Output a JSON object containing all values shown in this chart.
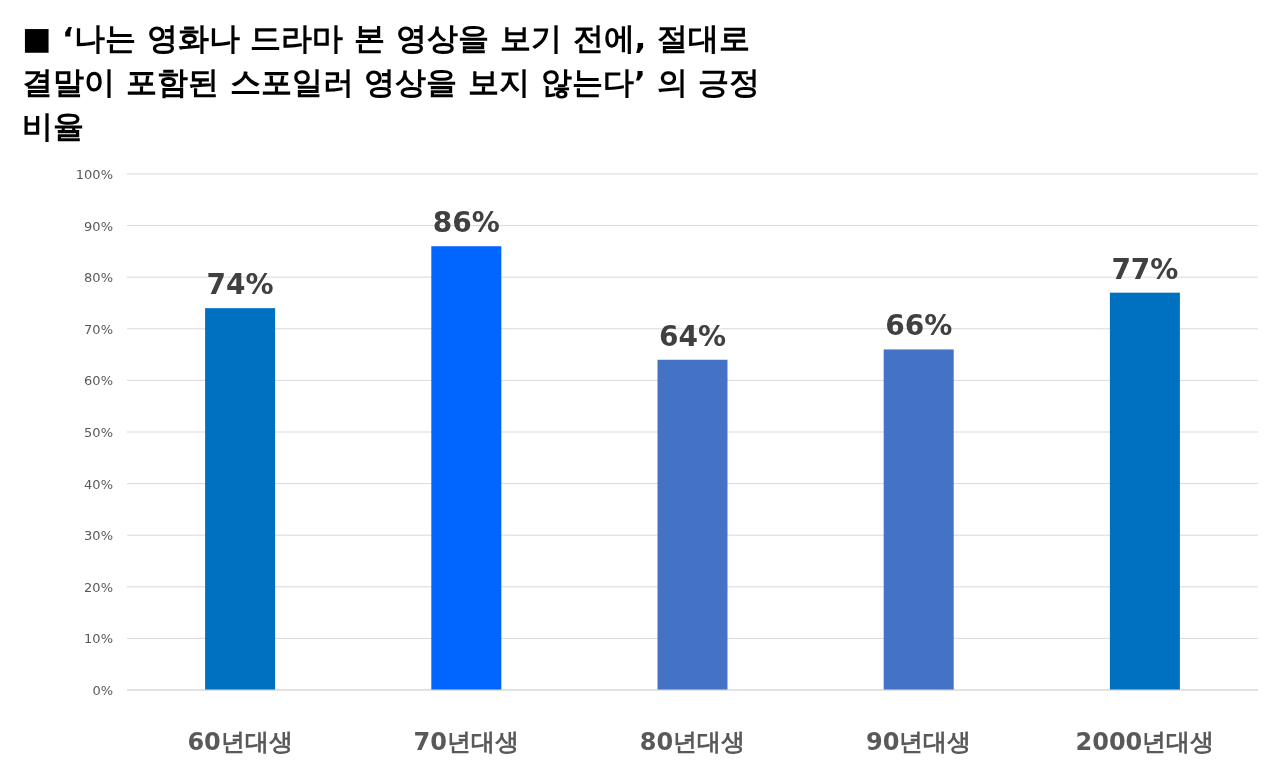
{
  "chart_data": {
    "type": "bar",
    "title": "■ ‘나는 영화나 드라마 본 영상을 보기 전에, 절대로 결말이 포함된 스포일러 영상을 보지 않는다’  의 긍정 비율",
    "categories": [
      "60년대생",
      "70년대생",
      "80년대생",
      "90년대생",
      "2000년대생"
    ],
    "values": [
      74,
      86,
      64,
      66,
      77
    ],
    "colors": [
      "#0070c0",
      "#0066ff",
      "#4472c4",
      "#4472c4",
      "#0070c0"
    ],
    "value_labels": [
      "74%",
      "86%",
      "64%",
      "66%",
      "77%"
    ],
    "ylim": [
      0,
      100
    ],
    "yticks": [
      {
        "value": 0,
        "label": "0%"
      },
      {
        "value": 10,
        "label": "10%"
      },
      {
        "value": 20,
        "label": "20%"
      },
      {
        "value": 30,
        "label": "30%"
      },
      {
        "value": 40,
        "label": "40%"
      },
      {
        "value": 50,
        "label": "50%"
      },
      {
        "value": 60,
        "label": "60%"
      },
      {
        "value": 70,
        "label": "70%"
      },
      {
        "value": 80,
        "label": "80%"
      },
      {
        "value": 90,
        "label": "90%"
      },
      {
        "value": 100,
        "label": "100%"
      }
    ],
    "grid": "y"
  }
}
